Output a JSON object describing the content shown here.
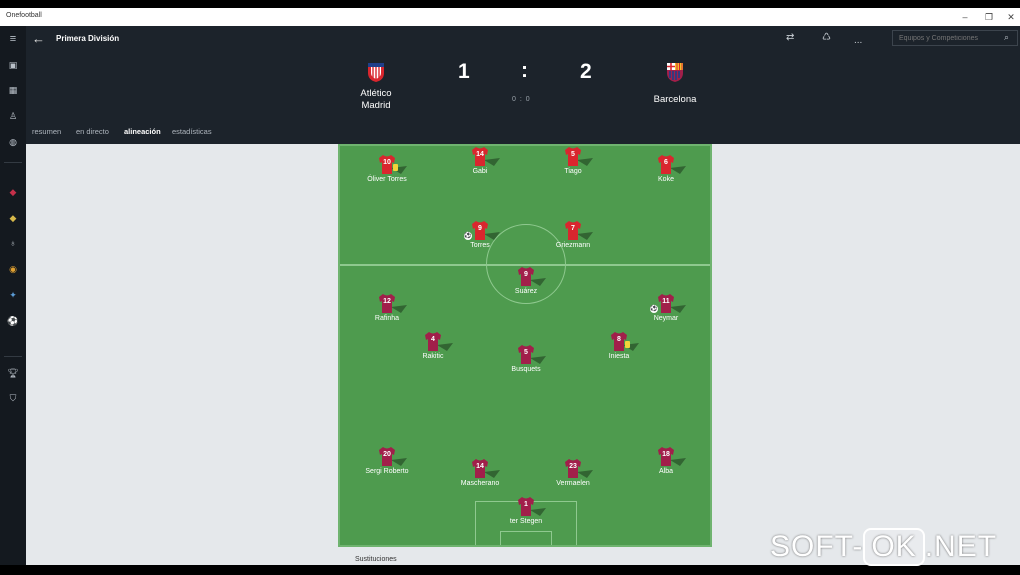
{
  "window": {
    "title": "Onefootball"
  },
  "header": {
    "competition": "Primera División",
    "search_placeholder": "Equipos y Competiciones",
    "more": "..."
  },
  "match": {
    "home": {
      "name_line1": "Atlético",
      "name_line2": "Madrid",
      "score": "1",
      "color": "#d9262e"
    },
    "away": {
      "name": "Barcelona",
      "score": "2",
      "color": "#a11f4a"
    },
    "separator": ":",
    "halftime": "0 : 0"
  },
  "tabs": [
    {
      "label": "resumen"
    },
    {
      "label": "en directo"
    },
    {
      "label": "alineación"
    },
    {
      "label": "estadísticas"
    }
  ],
  "lineup": {
    "home_jersey_color": "#d9262e",
    "away_jersey_color": "#a11f4a",
    "players": [
      {
        "num": "10",
        "name": "Óliver Torres",
        "team": "home",
        "card": true
      },
      {
        "num": "14",
        "name": "Gabi",
        "team": "home"
      },
      {
        "num": "5",
        "name": "Tiago",
        "team": "home"
      },
      {
        "num": "6",
        "name": "Koke",
        "team": "home"
      },
      {
        "num": "9",
        "name": "Torres",
        "team": "home",
        "goal": true
      },
      {
        "num": "7",
        "name": "Griezmann",
        "team": "home"
      },
      {
        "num": "9",
        "name": "Suárez",
        "team": "away"
      },
      {
        "num": "12",
        "name": "Rafinha",
        "team": "away"
      },
      {
        "num": "11",
        "name": "Neymar",
        "team": "away",
        "goal": true
      },
      {
        "num": "4",
        "name": "Rakitic",
        "team": "away"
      },
      {
        "num": "5",
        "name": "Busquets",
        "team": "away"
      },
      {
        "num": "8",
        "name": "Iniesta",
        "team": "away",
        "card": true
      },
      {
        "num": "20",
        "name": "Sergi Roberto",
        "team": "away"
      },
      {
        "num": "14",
        "name": "Mascherano",
        "team": "away"
      },
      {
        "num": "23",
        "name": "Vermaelen",
        "team": "away"
      },
      {
        "num": "18",
        "name": "Alba",
        "team": "away"
      },
      {
        "num": "1",
        "name": "ter Stegen",
        "team": "away"
      }
    ]
  },
  "substitutions_label": "Sustituciones",
  "watermark": {
    "left": "SOFT-",
    "box": "OK",
    "right": ".NET"
  }
}
